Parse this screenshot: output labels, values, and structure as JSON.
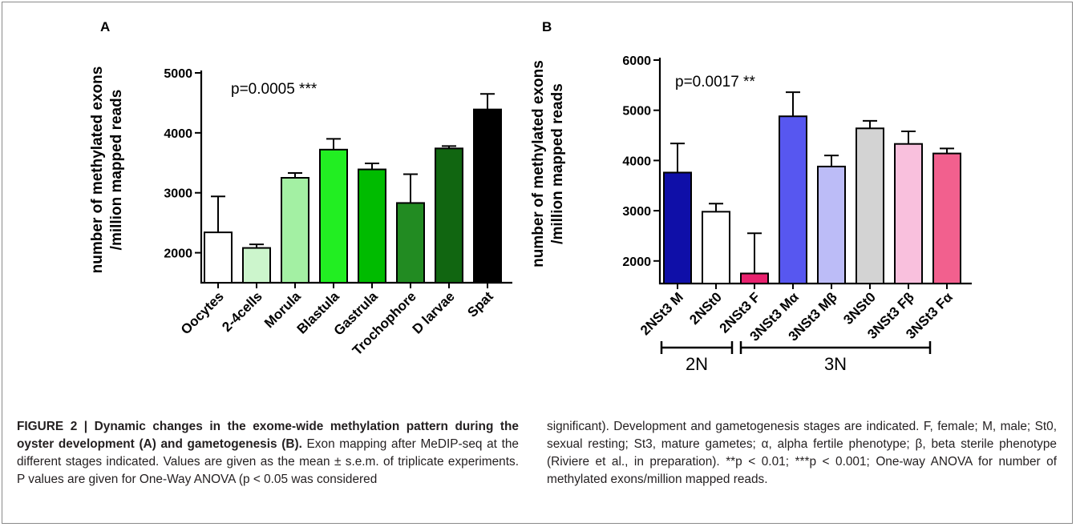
{
  "chart_data": [
    {
      "type": "bar",
      "panel_label": "A",
      "ylabel_lines": [
        "number of methylated exons",
        "/million mapped reads"
      ],
      "annotation": "p=0.0005 ***",
      "ylim": [
        1500,
        5000
      ],
      "yticks": [
        2000,
        3000,
        4000,
        5000
      ],
      "tick_labels": [
        "2000",
        "3000",
        "4000",
        "5000"
      ],
      "categories": [
        "Oocytes",
        "2-4cells",
        "Morula",
        "Blastula",
        "Gastrula",
        "Trochophore",
        "D larvae",
        "Spat"
      ],
      "values": [
        2340,
        2080,
        3250,
        3720,
        3390,
        2830,
        3740,
        4390
      ],
      "errors": [
        600,
        60,
        80,
        180,
        100,
        480,
        40,
        260
      ],
      "colors": [
        "#ffffff",
        "#ccf5cc",
        "#a3f0a3",
        "#22ee22",
        "#00bb00",
        "#228b22",
        "#116611",
        "#000000"
      ]
    },
    {
      "type": "bar",
      "panel_label": "B",
      "ylabel_lines": [
        "number of methylated exons",
        "/million mapped reads"
      ],
      "annotation": "p=0.0017 **",
      "ylim": [
        1550,
        6000
      ],
      "yticks": [
        2000,
        3000,
        4000,
        5000,
        6000
      ],
      "tick_labels": [
        "2000",
        "3000",
        "4000",
        "5000",
        "6000"
      ],
      "categories": [
        "2NSt3 M",
        "2NSt0",
        "2NSt3 F",
        "3NSt3 Mα",
        "3NSt3 Mβ",
        "3NSt0",
        "3NSt3 Fβ",
        "3NSt3 Fα"
      ],
      "values": [
        3760,
        2980,
        1750,
        4880,
        3880,
        4640,
        4330,
        4140
      ],
      "errors": [
        580,
        160,
        800,
        480,
        220,
        150,
        250,
        100
      ],
      "colors": [
        "#0f0fa8",
        "#ffffff",
        "#e8226e",
        "#5757f0",
        "#bcbcf7",
        "#d3d3d3",
        "#f9c0dd",
        "#f2608e"
      ],
      "groups": [
        {
          "label": "2N",
          "from": 0,
          "to": 1
        },
        {
          "label": "3N",
          "from": 2,
          "to": 6
        }
      ]
    }
  ],
  "caption": {
    "title": "FIGURE 2 | Dynamic changes in the exome-wide methylation pattern during the oyster development (A) and gametogenesis (B).",
    "left_text": "Exon mapping after MeDIP-seq at the different stages indicated. Values are given as the mean ± s.e.m. of triplicate experiments. P values are given for One-Way ANOVA (p < 0.05 was considered",
    "right_text": "significant). Development and gametogenesis stages are indicated. F, female; M, male; St0, sexual resting; St3, mature gametes; α, alpha fertile phenotype; β, beta sterile phenotype (Riviere et al., in preparation). **p < 0.01; ***p < 0.001; One-way ANOVA for number of methylated exons/million mapped reads."
  }
}
